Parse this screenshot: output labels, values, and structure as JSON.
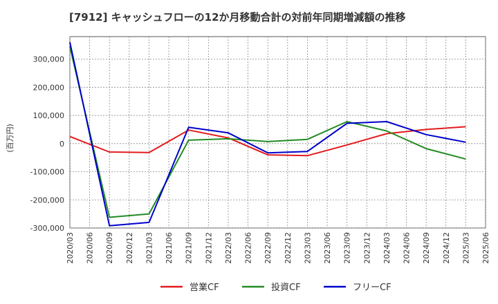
{
  "chart_data": {
    "type": "line",
    "title": "[7912]  キャッシュフローの12か月移動合計の対前年同期増減額の推移",
    "ylabel": "(百万円)",
    "xlabel": "",
    "ylim": [
      -300000,
      380000
    ],
    "yticks": [
      -300000,
      -200000,
      -100000,
      0,
      100000,
      200000,
      300000
    ],
    "ytick_labels": [
      "-300,000",
      "-200,000",
      "-100,000",
      "0",
      "100,000",
      "200,000",
      "300,000"
    ],
    "x_ticks": [
      "2020/03",
      "2020/06",
      "2020/09",
      "2020/12",
      "2021/03",
      "2021/06",
      "2021/09",
      "2021/12",
      "2022/03",
      "2022/06",
      "2022/09",
      "2022/12",
      "2023/03",
      "2023/06",
      "2023/09",
      "2023/12",
      "2024/03",
      "2024/06",
      "2024/09",
      "2024/12",
      "2025/03",
      "2025/06"
    ],
    "grid": true,
    "legend_position": "bottom",
    "series": [
      {
        "name": "営業CF",
        "color": "#e31a1c",
        "x": [
          "2020/03",
          "2020/09",
          "2021/03",
          "2021/09",
          "2022/03",
          "2022/09",
          "2023/03",
          "2023/09",
          "2024/03",
          "2024/09",
          "2025/03"
        ],
        "values": [
          25000,
          -30000,
          -32000,
          48000,
          20000,
          -40000,
          -43000,
          -5000,
          35000,
          50000,
          60000
        ]
      },
      {
        "name": "投資CF",
        "color": "#228b22",
        "x": [
          "2020/03",
          "2020/09",
          "2021/03",
          "2021/09",
          "2022/03",
          "2022/09",
          "2023/03",
          "2023/09",
          "2024/03",
          "2024/09",
          "2025/03"
        ],
        "values": [
          345000,
          -262000,
          -250000,
          12000,
          17000,
          7000,
          15000,
          78000,
          45000,
          -18000,
          -55000
        ]
      },
      {
        "name": "フリーCF",
        "color": "#0000cc",
        "x": [
          "2020/03",
          "2020/09",
          "2021/03",
          "2021/09",
          "2022/03",
          "2022/09",
          "2023/03",
          "2023/09",
          "2024/03",
          "2024/09",
          "2025/03"
        ],
        "values": [
          360000,
          -292000,
          -280000,
          58000,
          38000,
          -33000,
          -28000,
          72000,
          78000,
          32000,
          5000
        ]
      }
    ]
  }
}
